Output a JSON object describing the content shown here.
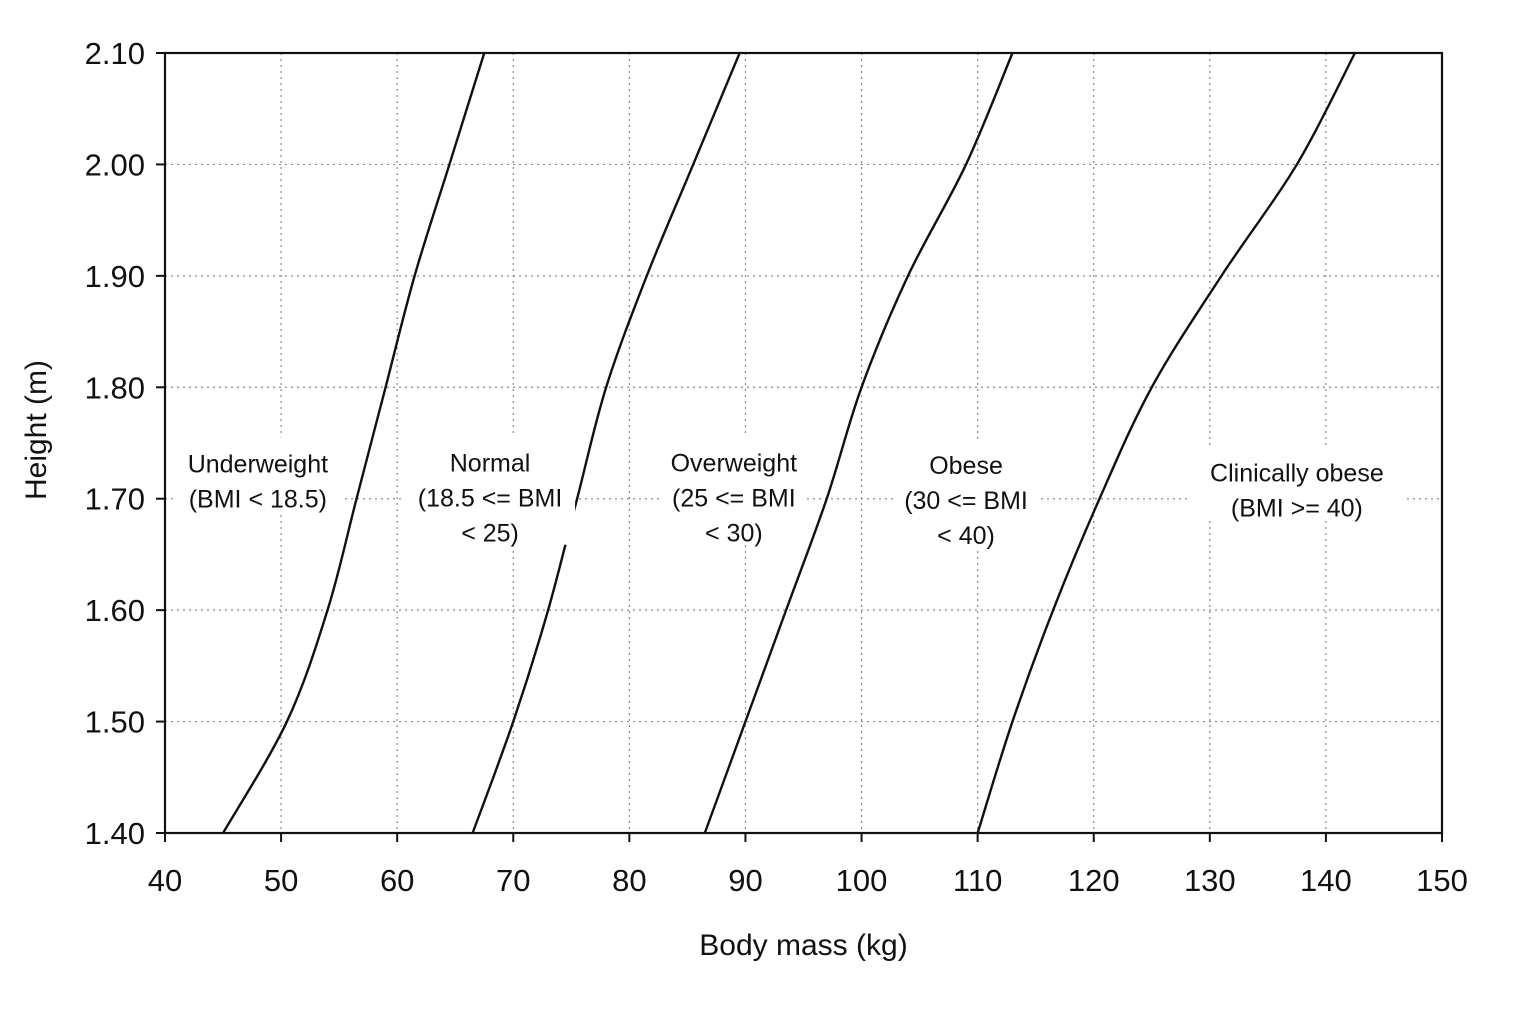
{
  "chart_data": {
    "type": "line",
    "title": "",
    "xlabel": "Body mass (kg)",
    "ylabel": "Height (m)",
    "xlim": [
      40,
      150
    ],
    "ylim": [
      1.4,
      2.1
    ],
    "x_ticks": [
      "40",
      "50",
      "60",
      "70",
      "80",
      "90",
      "100",
      "110",
      "120",
      "130",
      "140",
      "150"
    ],
    "y_ticks": [
      "1.40",
      "1.50",
      "1.60",
      "1.70",
      "1.80",
      "1.90",
      "2.00",
      "2.10"
    ],
    "grid": true,
    "grid_style": "dotted",
    "line_color": "#111111",
    "series": [
      {
        "x": [
          45,
          50.5,
          54,
          56.5,
          59,
          61.5,
          64.5,
          67.5
        ],
        "y": [
          1.4,
          1.5,
          1.6,
          1.7,
          1.8,
          1.9,
          2.0,
          2.1
        ]
      },
      {
        "x": [
          66.5,
          70,
          73,
          75.5,
          78,
          81.5,
          85.5,
          89.5
        ],
        "y": [
          1.4,
          1.5,
          1.6,
          1.7,
          1.8,
          1.9,
          2.0,
          2.1
        ]
      },
      {
        "x": [
          86.5,
          90,
          93.5,
          97,
          100,
          104,
          109,
          113
        ],
        "y": [
          1.4,
          1.5,
          1.6,
          1.7,
          1.8,
          1.9,
          2.0,
          2.1
        ]
      },
      {
        "x": [
          110,
          113,
          116.5,
          120.5,
          125,
          131,
          137.5,
          142.5
        ],
        "y": [
          1.4,
          1.5,
          1.6,
          1.7,
          1.8,
          1.9,
          2.0,
          2.1
        ]
      }
    ],
    "annotations": [
      {
        "lines": [
          "Underweight",
          "(BMI < 18.5)"
        ],
        "x": 48,
        "y": 1.715
      },
      {
        "lines": [
          "Normal",
          "(18.5 <= BMI",
          "< 25)"
        ],
        "x": 68,
        "y": 1.7
      },
      {
        "lines": [
          "Overweight",
          "(25 <= BMI",
          "< 30)"
        ],
        "x": 89,
        "y": 1.7
      },
      {
        "lines": [
          "Obese",
          "(30 <= BMI",
          "< 40)"
        ],
        "x": 109,
        "y": 1.698
      },
      {
        "lines": [
          "Clinically obese",
          "(BMI >= 40)"
        ],
        "x": 137.5,
        "y": 1.707
      }
    ]
  }
}
